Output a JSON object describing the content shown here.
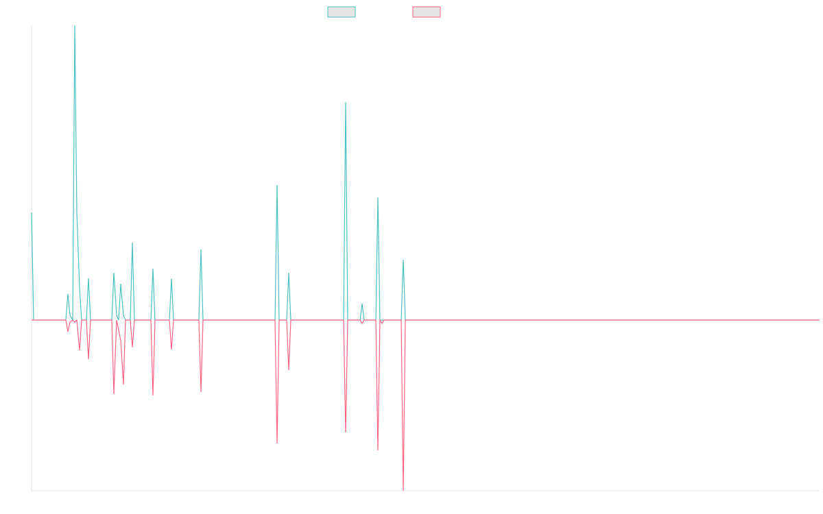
{
  "chart_data": {
    "type": "line",
    "xlim": [
      0,
      1149
    ],
    "ylim": [
      -24.9,
      43
    ],
    "grid": false,
    "legend": "top",
    "series": [
      {
        "color": "#4bc0c0",
        "x": [
          0,
          3,
          50,
          53,
          56,
          60,
          63,
          66,
          70,
          73,
          80,
          83,
          86,
          117,
          120,
          124,
          127,
          130,
          134,
          137,
          144,
          147,
          150,
          174,
          177,
          180,
          201,
          204,
          207,
          244,
          247,
          250,
          355,
          358,
          361,
          372,
          375,
          378,
          455,
          458,
          461,
          479,
          482,
          485,
          502,
          505,
          508,
          539,
          542,
          545,
          1149
        ],
        "values": [
          15.7,
          0,
          0,
          3.8,
          0.7,
          0,
          43,
          15.7,
          4.7,
          0,
          0,
          6.1,
          0,
          0,
          6.9,
          0.7,
          0,
          5.3,
          0.7,
          0,
          0,
          11.3,
          0,
          0,
          7.5,
          0,
          0,
          6,
          0,
          0,
          10.3,
          0,
          0,
          19.7,
          0,
          0,
          6.9,
          0,
          0,
          31.8,
          0,
          0,
          2.4,
          0,
          0,
          17.9,
          0,
          0,
          8.8,
          0,
          0
        ]
      },
      {
        "color": "#ff6384",
        "x": [
          0,
          50,
          53,
          56,
          60,
          63,
          66,
          70,
          73,
          80,
          83,
          86,
          117,
          120,
          124,
          130,
          134,
          137,
          144,
          147,
          150,
          174,
          177,
          180,
          201,
          204,
          207,
          244,
          247,
          250,
          355,
          358,
          361,
          372,
          375,
          378,
          455,
          458,
          461,
          479,
          482,
          485,
          502,
          505,
          508,
          511,
          514,
          539,
          542,
          545,
          1149
        ],
        "values": [
          0,
          0,
          -1.7,
          -0.3,
          0,
          -0.3,
          0,
          -4.4,
          0,
          0,
          -5.7,
          0,
          0,
          -10.8,
          0,
          -3,
          -9.4,
          0,
          0,
          -4,
          0,
          0,
          -11,
          0,
          0,
          -4.3,
          0,
          0,
          -10.5,
          0,
          0,
          -18,
          0,
          0,
          -7.3,
          0,
          0,
          -16.4,
          0,
          0,
          -0.5,
          0,
          0,
          -19,
          0,
          -0.5,
          0,
          0,
          -24.9,
          0,
          0
        ]
      }
    ]
  }
}
